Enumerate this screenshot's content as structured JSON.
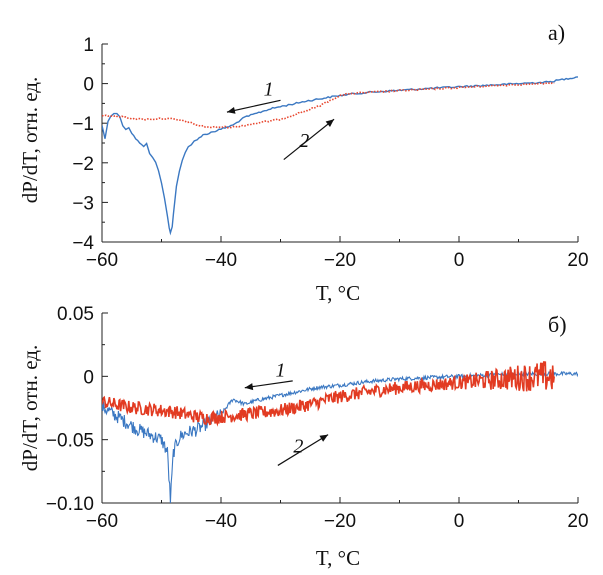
{
  "chart_data": [
    {
      "type": "line",
      "panel_label": "a)",
      "xlabel": "T, °C",
      "ylabel": "dP/dT, отн. ед.",
      "xlim": [
        -60,
        20
      ],
      "ylim": [
        -4,
        1
      ],
      "x_ticks": [
        "−60",
        "−40",
        "−20",
        "0",
        "20"
      ],
      "y_ticks": [
        "1",
        "0",
        "−1",
        "−2",
        "−3",
        "−4"
      ],
      "grid": false,
      "series": [
        {
          "name": "1",
          "color": "#3b78c2",
          "style": "solid",
          "x": [
            -60,
            -59.5,
            -59,
            -58.5,
            -58,
            -57.5,
            -57,
            -56.5,
            -56,
            -55.5,
            -55,
            -54,
            -53,
            -52.5,
            -52,
            -51.5,
            -51,
            -50.5,
            -50,
            -49.5,
            -49,
            -48.7,
            -48.5,
            -48.2,
            -48,
            -47.5,
            -47,
            -46.5,
            -46,
            -45.5,
            -45,
            -44.5,
            -44,
            -43,
            -42,
            -41,
            -40,
            -39,
            -38,
            -37,
            -36,
            -35,
            -34,
            -32,
            -30,
            -28,
            -26,
            -24,
            -22,
            -20,
            -18,
            -15,
            -10,
            -5,
            0,
            5,
            10,
            15,
            18,
            20
          ],
          "y": [
            -1.05,
            -1.4,
            -0.95,
            -0.8,
            -0.75,
            -0.75,
            -0.85,
            -1.05,
            -1.15,
            -1.1,
            -1.25,
            -1.45,
            -1.6,
            -1.5,
            -1.75,
            -1.85,
            -2.0,
            -2.2,
            -2.5,
            -2.9,
            -3.35,
            -3.65,
            -3.75,
            -3.6,
            -3.3,
            -2.6,
            -2.2,
            -1.95,
            -1.75,
            -1.6,
            -1.55,
            -1.45,
            -1.4,
            -1.3,
            -1.25,
            -1.2,
            -1.15,
            -1.1,
            -1.05,
            -0.95,
            -0.85,
            -0.8,
            -0.75,
            -0.65,
            -0.58,
            -0.52,
            -0.45,
            -0.4,
            -0.35,
            -0.3,
            -0.26,
            -0.22,
            -0.17,
            -0.12,
            -0.08,
            -0.04,
            0.0,
            0.04,
            0.12,
            0.17
          ]
        },
        {
          "name": "2",
          "color": "#e8472f",
          "style": "dotted",
          "x": [
            -60,
            -58,
            -56,
            -54,
            -52,
            -50,
            -48,
            -46,
            -44,
            -42,
            -40,
            -38,
            -36,
            -34,
            -32,
            -30,
            -28,
            -26,
            -24,
            -22,
            -20,
            -18,
            -15,
            -10,
            -5,
            0,
            5,
            10,
            15,
            16
          ],
          "y": [
            -0.8,
            -0.82,
            -0.85,
            -0.9,
            -0.9,
            -0.88,
            -0.9,
            -0.95,
            -1.05,
            -1.1,
            -1.1,
            -1.1,
            -1.05,
            -1.0,
            -0.95,
            -0.9,
            -0.8,
            -0.7,
            -0.6,
            -0.45,
            -0.3,
            -0.25,
            -0.22,
            -0.18,
            -0.14,
            -0.1,
            -0.06,
            -0.02,
            0.0,
            0.01
          ]
        }
      ],
      "annotations": [
        {
          "text": "1",
          "x": -32,
          "y": -0.3,
          "arrow_to": [
            -39,
            -0.72
          ]
        },
        {
          "text": "2",
          "x": -26,
          "y": -1.6,
          "arrow_to": [
            -21,
            -0.9
          ]
        }
      ]
    },
    {
      "type": "line",
      "panel_label": "б)",
      "xlabel": "T, °C",
      "ylabel": "dP/dT, отн. ед.",
      "xlim": [
        -60,
        20
      ],
      "ylim": [
        -0.1,
        0.05
      ],
      "x_ticks": [
        "−60",
        "−40",
        "−20",
        "0",
        "20"
      ],
      "y_ticks": [
        "0.05",
        "0",
        "−0.05",
        "−0.10"
      ],
      "grid": false,
      "series": [
        {
          "name": "1",
          "color": "#3b78c2",
          "style": "solid-noisy",
          "x": [
            -60,
            -58,
            -56,
            -54,
            -52,
            -50,
            -49,
            -48.5,
            -48,
            -47,
            -46,
            -44,
            -42,
            -40,
            -38,
            -36,
            -34,
            -32,
            -30,
            -28,
            -26,
            -24,
            -22,
            -20,
            -15,
            -10,
            -5,
            0,
            5,
            10,
            15,
            18,
            20
          ],
          "y": [
            -0.024,
            -0.03,
            -0.036,
            -0.042,
            -0.046,
            -0.05,
            -0.06,
            -0.098,
            -0.06,
            -0.048,
            -0.045,
            -0.042,
            -0.036,
            -0.03,
            -0.018,
            -0.022,
            -0.019,
            -0.017,
            -0.015,
            -0.013,
            -0.011,
            -0.009,
            -0.008,
            -0.007,
            -0.004,
            -0.002,
            -0.001,
            0.0,
            0.001,
            0.002,
            0.002,
            0.002,
            0.002
          ]
        },
        {
          "name": "2",
          "color": "#e23b22",
          "style": "solid-noisy",
          "x": [
            -60,
            -58,
            -56,
            -54,
            -52,
            -50,
            -48,
            -46,
            -44,
            -42,
            -40,
            -38,
            -36,
            -34,
            -32,
            -30,
            -28,
            -26,
            -24,
            -22,
            -20,
            -15,
            -10,
            -5,
            0,
            5,
            10,
            15,
            16
          ],
          "y": [
            -0.02,
            -0.022,
            -0.024,
            -0.025,
            -0.026,
            -0.027,
            -0.028,
            -0.03,
            -0.032,
            -0.033,
            -0.032,
            -0.031,
            -0.03,
            -0.029,
            -0.028,
            -0.027,
            -0.025,
            -0.023,
            -0.021,
            -0.018,
            -0.016,
            -0.012,
            -0.009,
            -0.007,
            -0.005,
            -0.003,
            -0.001,
            0.0,
            0.0
          ]
        }
      ],
      "annotations": [
        {
          "text": "1",
          "x": -30,
          "y": 0.0,
          "arrow_to": [
            -36,
            -0.009
          ]
        },
        {
          "text": "2",
          "x": -27,
          "y": -0.06,
          "arrow_to": [
            -22,
            -0.046
          ]
        }
      ]
    }
  ]
}
